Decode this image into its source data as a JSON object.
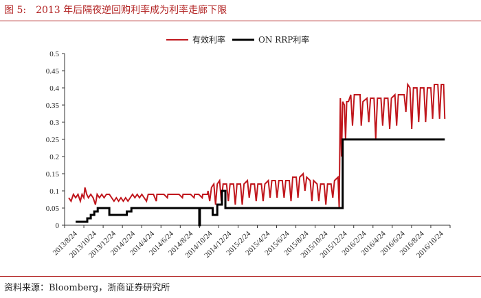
{
  "figure": {
    "label": "图 5:",
    "title": "2013 年后隔夜逆回购利率成为利率走廊下限"
  },
  "source": "资料来源：Bloomberg，浙商证券研究所",
  "colors": {
    "accent": "#b22222",
    "series1": "#c0161c",
    "series2": "#000000"
  },
  "chart_data": {
    "type": "line",
    "title": "",
    "xlabel": "",
    "ylabel": "",
    "ylim": [
      0,
      0.5
    ],
    "yticks": [
      "0",
      "0.05",
      "0.1",
      "0.15",
      "0.2",
      "0.25",
      "0.3",
      "0.35",
      "0.4",
      "0.45",
      "0.5"
    ],
    "x_categories": [
      "2013/8/24",
      "2013/10/24",
      "2013/12/24",
      "2014/2/24",
      "2014/4/24",
      "2014/6/24",
      "2014/8/24",
      "2014/10/24",
      "2014/12/24",
      "2015/2/24",
      "2015/4/24",
      "2015/6/24",
      "2015/8/24",
      "2015/10/24",
      "2015/12/24",
      "2016/2/24",
      "2016/4/24",
      "2016/6/24",
      "2016/8/24",
      "2016/10/24"
    ],
    "grid": false,
    "legend_position": "top",
    "series": [
      {
        "name": "有效利率",
        "color": "#c0161c",
        "points": [
          [
            0.0,
            0.08
          ],
          [
            0.2,
            0.07
          ],
          [
            0.4,
            0.09
          ],
          [
            0.6,
            0.08
          ],
          [
            0.8,
            0.09
          ],
          [
            1.0,
            0.07
          ],
          [
            1.15,
            0.09
          ],
          [
            1.3,
            0.08
          ],
          [
            1.4,
            0.11
          ],
          [
            1.55,
            0.09
          ],
          [
            1.7,
            0.08
          ],
          [
            1.9,
            0.09
          ],
          [
            2.1,
            0.08
          ],
          [
            2.3,
            0.06
          ],
          [
            2.45,
            0.09
          ],
          [
            2.65,
            0.08
          ],
          [
            2.85,
            0.09
          ],
          [
            3.05,
            0.08
          ],
          [
            3.25,
            0.09
          ],
          [
            3.5,
            0.09
          ],
          [
            3.7,
            0.08
          ],
          [
            3.9,
            0.07
          ],
          [
            4.1,
            0.08
          ],
          [
            4.3,
            0.07
          ],
          [
            4.5,
            0.08
          ],
          [
            4.7,
            0.07
          ],
          [
            4.9,
            0.08
          ],
          [
            5.1,
            0.07
          ],
          [
            5.3,
            0.08
          ],
          [
            5.5,
            0.09
          ],
          [
            5.7,
            0.08
          ],
          [
            5.9,
            0.09
          ],
          [
            6.1,
            0.08
          ],
          [
            6.3,
            0.09
          ],
          [
            6.5,
            0.08
          ],
          [
            6.7,
            0.07
          ],
          [
            6.85,
            0.09
          ],
          [
            7.0,
            0.09
          ],
          [
            7.3,
            0.09
          ],
          [
            7.55,
            0.07
          ],
          [
            7.6,
            0.09
          ],
          [
            7.9,
            0.09
          ],
          [
            8.2,
            0.09
          ],
          [
            8.5,
            0.08
          ],
          [
            8.55,
            0.09
          ],
          [
            8.9,
            0.09
          ],
          [
            9.2,
            0.09
          ],
          [
            9.5,
            0.09
          ],
          [
            9.8,
            0.08
          ],
          [
            9.85,
            0.09
          ],
          [
            10.2,
            0.09
          ],
          [
            10.5,
            0.09
          ],
          [
            10.8,
            0.08
          ],
          [
            10.85,
            0.09
          ],
          [
            11.2,
            0.09
          ],
          [
            11.5,
            0.08
          ],
          [
            11.55,
            0.09
          ],
          [
            11.95,
            0.09
          ],
          [
            12.0,
            0.1
          ],
          [
            12.15,
            0.07
          ],
          [
            12.3,
            0.11
          ],
          [
            12.5,
            0.12
          ],
          [
            12.65,
            0.06
          ],
          [
            12.8,
            0.12
          ],
          [
            13.0,
            0.13
          ],
          [
            13.15,
            0.07
          ],
          [
            13.3,
            0.12
          ],
          [
            13.6,
            0.12
          ],
          [
            13.75,
            0.07
          ],
          [
            13.9,
            0.12
          ],
          [
            14.2,
            0.12
          ],
          [
            14.35,
            0.06
          ],
          [
            14.5,
            0.12
          ],
          [
            14.8,
            0.12
          ],
          [
            14.95,
            0.06
          ],
          [
            15.1,
            0.12
          ],
          [
            15.4,
            0.13
          ],
          [
            15.55,
            0.08
          ],
          [
            15.7,
            0.12
          ],
          [
            16.0,
            0.12
          ],
          [
            16.15,
            0.07
          ],
          [
            16.3,
            0.12
          ],
          [
            16.6,
            0.12
          ],
          [
            16.75,
            0.07
          ],
          [
            16.9,
            0.12
          ],
          [
            17.2,
            0.13
          ],
          [
            17.35,
            0.08
          ],
          [
            17.5,
            0.13
          ],
          [
            17.8,
            0.13
          ],
          [
            17.95,
            0.08
          ],
          [
            18.1,
            0.13
          ],
          [
            18.4,
            0.13
          ],
          [
            18.55,
            0.08
          ],
          [
            18.7,
            0.13
          ],
          [
            19.0,
            0.13
          ],
          [
            19.15,
            0.07
          ],
          [
            19.3,
            0.14
          ],
          [
            19.6,
            0.14
          ],
          [
            19.75,
            0.08
          ],
          [
            19.9,
            0.14
          ],
          [
            20.2,
            0.15
          ],
          [
            20.35,
            0.1
          ],
          [
            20.5,
            0.14
          ],
          [
            20.8,
            0.13
          ],
          [
            20.95,
            0.07
          ],
          [
            21.1,
            0.13
          ],
          [
            21.4,
            0.12
          ],
          [
            21.55,
            0.07
          ],
          [
            21.7,
            0.12
          ],
          [
            22.0,
            0.12
          ],
          [
            22.15,
            0.06
          ],
          [
            22.3,
            0.12
          ],
          [
            22.6,
            0.12
          ],
          [
            22.75,
            0.08
          ],
          [
            22.9,
            0.13
          ],
          [
            23.2,
            0.14
          ],
          [
            23.3,
            0.05
          ],
          [
            23.4,
            0.37
          ],
          [
            23.5,
            0.2
          ],
          [
            23.6,
            0.36
          ],
          [
            23.75,
            0.35
          ],
          [
            23.85,
            0.25
          ],
          [
            23.95,
            0.36
          ],
          [
            24.1,
            0.36
          ],
          [
            24.3,
            0.38
          ],
          [
            24.45,
            0.29
          ],
          [
            24.6,
            0.38
          ],
          [
            24.9,
            0.38
          ],
          [
            25.1,
            0.38
          ],
          [
            25.2,
            0.29
          ],
          [
            25.35,
            0.36
          ],
          [
            25.7,
            0.37
          ],
          [
            25.85,
            0.3
          ],
          [
            26.0,
            0.37
          ],
          [
            26.3,
            0.37
          ],
          [
            26.45,
            0.25
          ],
          [
            26.6,
            0.37
          ],
          [
            26.9,
            0.37
          ],
          [
            27.05,
            0.29
          ],
          [
            27.2,
            0.37
          ],
          [
            27.5,
            0.37
          ],
          [
            27.65,
            0.28
          ],
          [
            27.8,
            0.37
          ],
          [
            28.1,
            0.38
          ],
          [
            28.25,
            0.29
          ],
          [
            28.4,
            0.38
          ],
          [
            28.6,
            0.38
          ],
          [
            28.9,
            0.38
          ],
          [
            29.05,
            0.33
          ],
          [
            29.2,
            0.41
          ],
          [
            29.4,
            0.4
          ],
          [
            29.55,
            0.28
          ],
          [
            29.7,
            0.4
          ],
          [
            30.0,
            0.4
          ],
          [
            30.15,
            0.3
          ],
          [
            30.3,
            0.4
          ],
          [
            30.6,
            0.4
          ],
          [
            30.75,
            0.3
          ],
          [
            30.9,
            0.4
          ],
          [
            31.2,
            0.4
          ],
          [
            31.35,
            0.31
          ],
          [
            31.5,
            0.41
          ],
          [
            31.8,
            0.41
          ],
          [
            31.95,
            0.31
          ],
          [
            32.1,
            0.41
          ],
          [
            32.3,
            0.41
          ],
          [
            32.4,
            0.31
          ]
        ]
      },
      {
        "name": "ON RRP利率",
        "color": "#000000",
        "points": [
          [
            0.6,
            0.01
          ],
          [
            1.6,
            0.01
          ],
          [
            1.6,
            0.02
          ],
          [
            1.9,
            0.02
          ],
          [
            1.9,
            0.03
          ],
          [
            2.2,
            0.03
          ],
          [
            2.2,
            0.04
          ],
          [
            2.5,
            0.04
          ],
          [
            2.5,
            0.05
          ],
          [
            3.5,
            0.05
          ],
          [
            3.5,
            0.03
          ],
          [
            5.0,
            0.03
          ],
          [
            5.0,
            0.04
          ],
          [
            5.4,
            0.04
          ],
          [
            5.4,
            0.05
          ],
          [
            11.25,
            0.05
          ],
          [
            11.25,
            0.0
          ],
          [
            11.3,
            0.0
          ],
          [
            11.3,
            0.05
          ],
          [
            12.4,
            0.05
          ],
          [
            12.4,
            0.03
          ],
          [
            12.8,
            0.03
          ],
          [
            12.8,
            0.06
          ],
          [
            13.2,
            0.06
          ],
          [
            13.2,
            0.1
          ],
          [
            13.5,
            0.1
          ],
          [
            13.5,
            0.05
          ],
          [
            23.6,
            0.05
          ],
          [
            23.6,
            0.25
          ],
          [
            32.4,
            0.25
          ]
        ]
      }
    ]
  }
}
